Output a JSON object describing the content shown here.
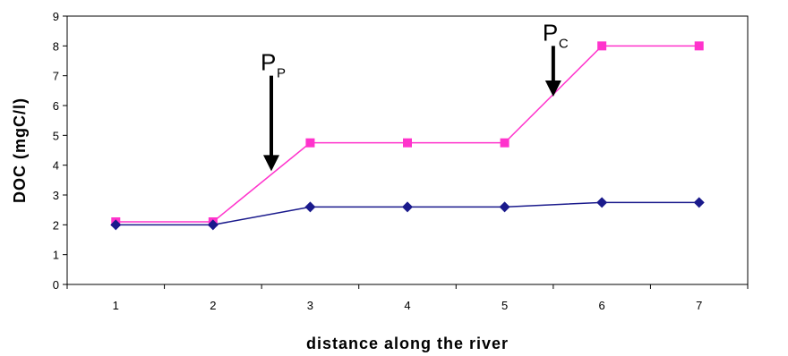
{
  "chart_data": {
    "type": "line",
    "title": "",
    "xlabel": "distance along the river",
    "ylabel": "DOC (mgC/l)",
    "x": [
      1,
      2,
      3,
      4,
      5,
      6,
      7
    ],
    "ylim": [
      0,
      9
    ],
    "yticks": [
      0,
      1,
      2,
      3,
      4,
      5,
      6,
      7,
      8,
      9
    ],
    "grid": false,
    "legend": "none",
    "series": [
      {
        "values": [
          2.1,
          2.1,
          4.75,
          4.75,
          4.75,
          8.0,
          8.0
        ],
        "color": "#ff33cc",
        "marker": "square"
      },
      {
        "values": [
          2.0,
          2.0,
          2.6,
          2.6,
          2.6,
          2.75,
          2.75
        ],
        "color": "#1a1a8c",
        "marker": "diamond"
      }
    ],
    "annotations": [
      {
        "main": "P",
        "sub": "P",
        "x": 2.6,
        "y_top": 7.0,
        "y_bottom": 3.8
      },
      {
        "main": "P",
        "sub": "C",
        "x": 5.5,
        "y_top": 8.0,
        "y_bottom": 6.3
      }
    ]
  }
}
